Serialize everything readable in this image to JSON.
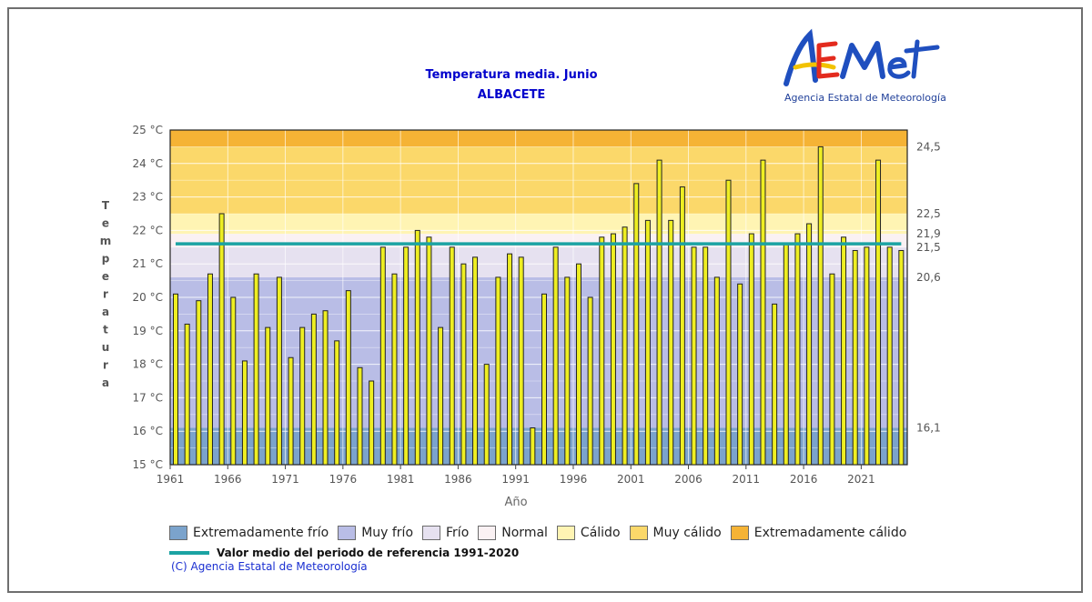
{
  "titles": {
    "main": "Temperatura media. Junio",
    "location": "ALBACETE"
  },
  "logo": {
    "text": "AEMet",
    "subtitle": "Agencia Estatal de Meteorología"
  },
  "copyright": "(C) Agencia Estatal de Meteorología",
  "chart_data": {
    "type": "bar",
    "title": "Temperatura media. Junio",
    "subtitle": "ALBACETE",
    "xlabel": "Año",
    "ylabel": "Temperatura",
    "ylim": [
      15,
      25
    ],
    "grid": true,
    "y_unit": "°C",
    "y_ticks": [
      "15 °C",
      "16 °C",
      "17 °C",
      "18 °C",
      "19 °C",
      "20 °C",
      "21 °C",
      "22 °C",
      "23 °C",
      "24 °C",
      "25 °C"
    ],
    "x_tick_labels": [
      "1961",
      "1966",
      "1971",
      "1976",
      "1981",
      "1986",
      "1991",
      "1996",
      "2001",
      "2006",
      "2011",
      "2016",
      "2021"
    ],
    "x": [
      1961,
      1962,
      1963,
      1964,
      1965,
      1966,
      1967,
      1968,
      1969,
      1970,
      1971,
      1972,
      1973,
      1974,
      1975,
      1976,
      1977,
      1978,
      1979,
      1980,
      1981,
      1982,
      1983,
      1984,
      1985,
      1986,
      1987,
      1988,
      1989,
      1990,
      1991,
      1992,
      1993,
      1994,
      1995,
      1996,
      1997,
      1998,
      1999,
      2000,
      2001,
      2002,
      2003,
      2004,
      2005,
      2006,
      2007,
      2008,
      2009,
      2010,
      2011,
      2012,
      2013,
      2014,
      2015,
      2016,
      2017,
      2018,
      2019,
      2020,
      2021,
      2022,
      2023,
      2024
    ],
    "values": [
      20.1,
      19.2,
      19.9,
      20.7,
      22.5,
      20.0,
      18.1,
      20.7,
      19.1,
      20.6,
      18.2,
      19.1,
      19.5,
      19.6,
      18.7,
      20.2,
      17.9,
      17.5,
      21.5,
      20.7,
      21.5,
      22.0,
      21.8,
      19.1,
      21.5,
      21.0,
      21.2,
      18.0,
      20.6,
      21.3,
      21.2,
      16.1,
      20.1,
      21.5,
      20.6,
      21.0,
      20.0,
      21.8,
      21.9,
      22.1,
      23.4,
      22.3,
      24.1,
      22.3,
      23.3,
      21.5,
      21.5,
      20.6,
      23.5,
      20.4,
      21.9,
      24.1,
      19.8,
      21.6,
      21.9,
      22.2,
      24.5,
      20.7,
      21.8,
      21.4,
      21.5,
      24.1,
      21.5,
      21.4
    ],
    "reference_mean": 21.6,
    "reference_label": "Valor medio del periodo de referencia 1991-2020",
    "thresholds": [
      {
        "value": 16.1,
        "label": "16,1"
      },
      {
        "value": 20.6,
        "label": "20,6"
      },
      {
        "value": 21.5,
        "label": "21,5"
      },
      {
        "value": 21.9,
        "label": "21,9"
      },
      {
        "value": 22.5,
        "label": "22,5"
      },
      {
        "value": 24.5,
        "label": "24,5"
      }
    ],
    "bands": [
      {
        "from": 15,
        "to": 16.1,
        "color": "#7ba3cc",
        "label": "Extremadamente frío"
      },
      {
        "from": 16.1,
        "to": 20.6,
        "color": "#b9bde6",
        "label": "Muy frío"
      },
      {
        "from": 20.6,
        "to": 21.5,
        "color": "#e6e1f0",
        "label": "Frío"
      },
      {
        "from": 21.5,
        "to": 21.9,
        "color": "#faf1f3",
        "label": "Normal"
      },
      {
        "from": 21.9,
        "to": 22.5,
        "color": "#fff4b3",
        "label": "Cálido"
      },
      {
        "from": 22.5,
        "to": 24.5,
        "color": "#fbd86a",
        "label": "Muy cálido"
      },
      {
        "from": 24.5,
        "to": 25,
        "color": "#f5b335",
        "label": "Extremadamente cálido"
      }
    ],
    "colors": {
      "bar_fill": "#eeee22",
      "bar_stroke": "#222222",
      "reference_line": "#1ba3a3"
    },
    "legend_position": "bottom"
  }
}
